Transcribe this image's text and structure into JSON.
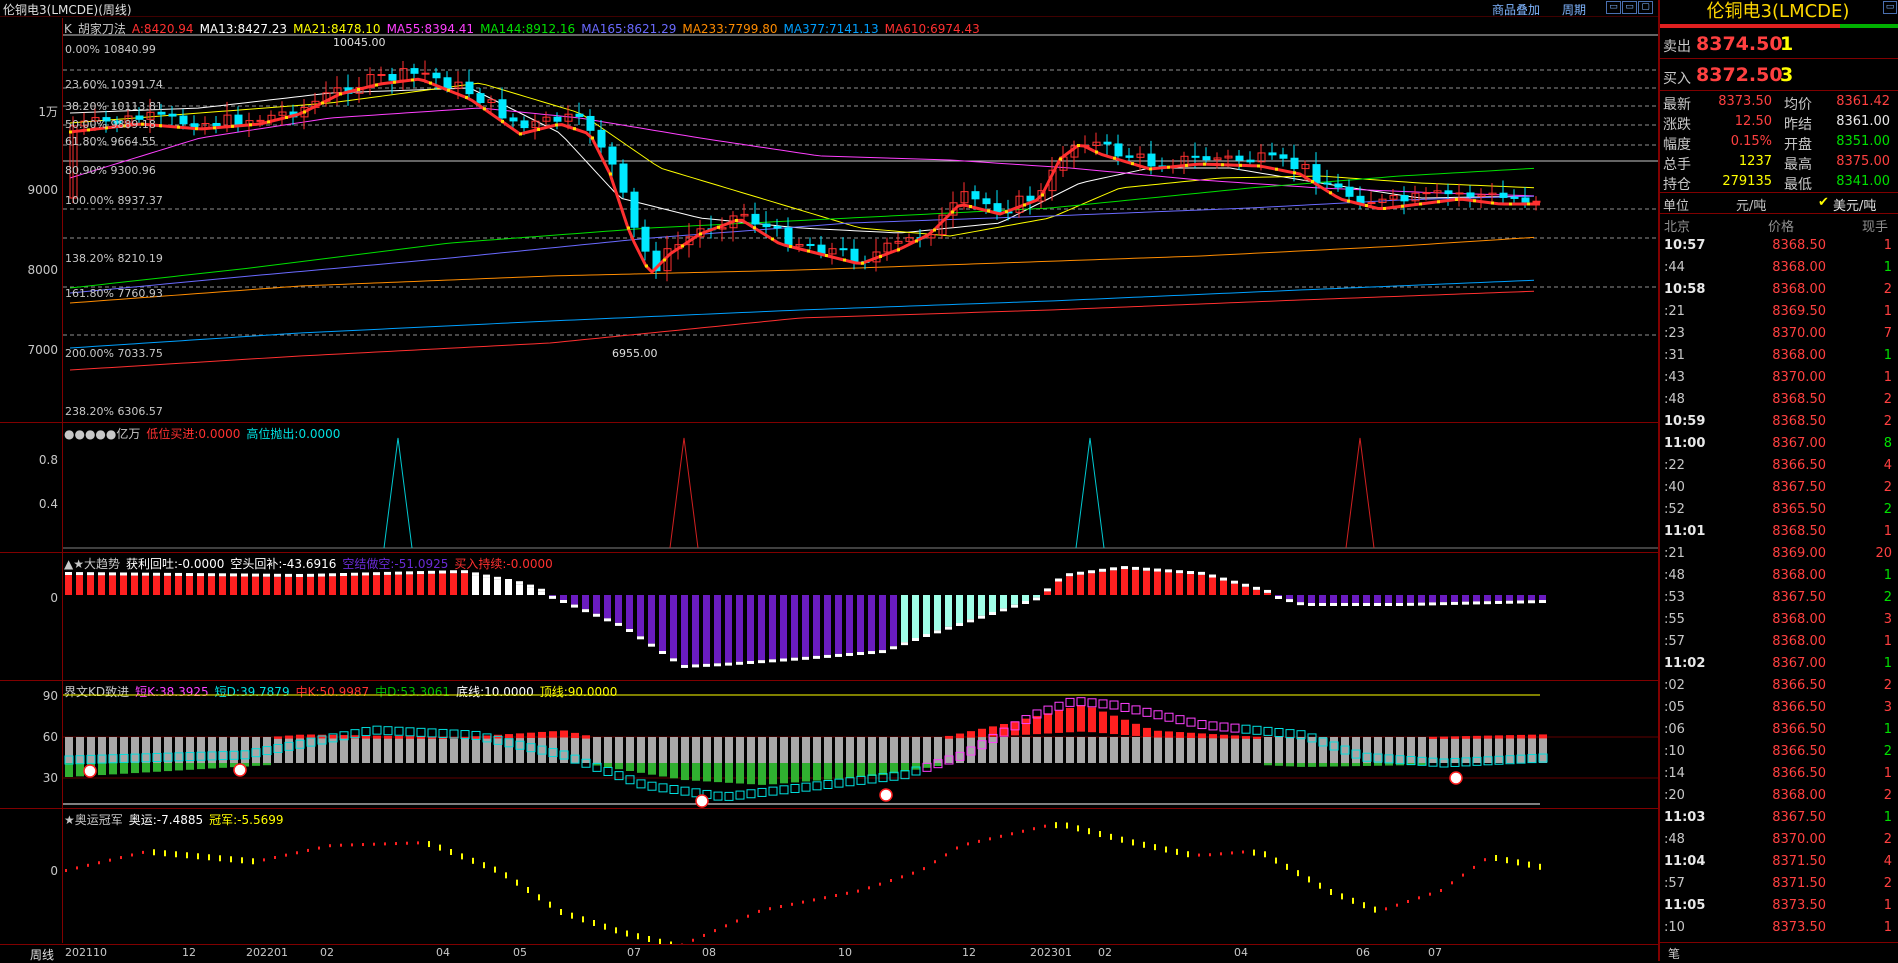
{
  "window": {
    "title": "伦铜电3(LMCDE)(周线)",
    "link_overlay": "商品叠加",
    "link_period": "周期"
  },
  "main_chart": {
    "legend": [
      {
        "text": "K",
        "color": "#c8c8c8"
      },
      {
        "text": "胡家刀法",
        "color": "#c8c8c8"
      },
      {
        "text": "A:8420.94",
        "color": "#ff3030"
      },
      {
        "text": "MA13:8427.23",
        "color": "#ffffff"
      },
      {
        "text": "MA21:8478.10",
        "color": "#ffff00"
      },
      {
        "text": "MA55:8394.41",
        "color": "#ff40ff"
      },
      {
        "text": "MA144:8912.16",
        "color": "#00e000"
      },
      {
        "text": "MA165:8621.29",
        "color": "#6a6aff"
      },
      {
        "text": "MA233:7799.80",
        "color": "#ff8c00"
      },
      {
        "text": "MA377:7141.13",
        "color": "#00a0ff"
      },
      {
        "text": "MA610:6974.43",
        "color": "#ff3030"
      }
    ],
    "y_labels": [
      "1万",
      "9000",
      "8000",
      "7000"
    ],
    "fib_levels": [
      "0.00% 10840.99",
      "23.60% 10391.74",
      "38.20% 10113.81",
      "50.00% 9889.18",
      "61.80% 9664.55",
      "80.90% 9300.96",
      "100.00% 8937.37",
      "138.20% 8210.19",
      "161.80% 7760.93",
      "200.00% 7033.75",
      "238.20% 6306.57"
    ],
    "high_mark": "10045.00",
    "low_mark": "6955.00"
  },
  "indicator1": {
    "legend": [
      {
        "text": "●●●●●亿万",
        "color": "#c8c8c8"
      },
      {
        "text": "低位买进:0.0000",
        "color": "#ff3030"
      },
      {
        "text": "高位抛出:0.0000",
        "color": "#00e0e0"
      }
    ],
    "y_labels": [
      "0.8",
      "0.4"
    ]
  },
  "indicator2": {
    "legend": [
      {
        "text": "▲★大趋势",
        "color": "#c8c8c8"
      },
      {
        "text": "获利回吐:-0.0000",
        "color": "#ffffff"
      },
      {
        "text": "空头回补:-43.6916",
        "color": "#ffffff"
      },
      {
        "text": "空结做空:-51.0925",
        "color": "#6a2bd6"
      },
      {
        "text": "买入持续:-0.0000",
        "color": "#ff3030"
      }
    ],
    "y_labels": [
      "0"
    ]
  },
  "indicator3": {
    "legend": [
      {
        "text": "界文KD致进",
        "color": "#c8c8c8"
      },
      {
        "text": "短K:38.3925",
        "color": "#ff40ff"
      },
      {
        "text": "短D:39.7879",
        "color": "#00e0e0"
      },
      {
        "text": "中K:50.9987",
        "color": "#ff3030"
      },
      {
        "text": "中D:53.3061",
        "color": "#00c000"
      },
      {
        "text": "底线:10.0000",
        "color": "#ffffff"
      },
      {
        "text": "顶线:90.0000",
        "color": "#ffff00"
      }
    ],
    "y_labels": [
      "90",
      "60",
      "30"
    ]
  },
  "indicator4": {
    "legend": [
      {
        "text": "★奥运冠军",
        "color": "#c8c8c8"
      },
      {
        "text": "奥运:-7.4885",
        "color": "#ffffff"
      },
      {
        "text": "冠军:-5.5699",
        "color": "#ffff00"
      }
    ],
    "y_labels": [
      "0"
    ]
  },
  "x_axis": {
    "period_label": "周线",
    "labels": [
      "202110",
      "12",
      "202201",
      "02",
      "04",
      "05",
      "07",
      "08",
      "10",
      "12",
      "202301",
      "02",
      "04",
      "06",
      "07"
    ]
  },
  "quote": {
    "title": "伦铜电3(LMCDE)",
    "ask_label": "卖出",
    "ask_price": "8374.50",
    "ask_vol": "1",
    "bid_label": "买入",
    "bid_price": "8372.50",
    "bid_vol": "3",
    "stats": [
      {
        "l1": "最新",
        "v1": "8373.50",
        "c1": "#ff4040",
        "l2": "均价",
        "v2": "8361.42",
        "c2": "#ff4040"
      },
      {
        "l1": "涨跌",
        "v1": "12.50",
        "c1": "#ff4040",
        "l2": "昨结",
        "v2": "8361.00",
        "c2": "#e8e8e8"
      },
      {
        "l1": "幅度",
        "v1": "0.15%",
        "c1": "#ff4040",
        "l2": "开盘",
        "v2": "8351.00",
        "c2": "#00e000"
      },
      {
        "l1": "总手",
        "v1": "1237",
        "c1": "#ffff00",
        "l2": "最高",
        "v2": "8375.00",
        "c2": "#ff4040"
      },
      {
        "l1": "持仓",
        "v1": "279135",
        "c1": "#ffff00",
        "l2": "最低",
        "v2": "8341.00",
        "c2": "#00e000"
      }
    ],
    "unit_label": "单位",
    "unit_value": "元/吨",
    "unit_option": "美元/吨",
    "tick_header": {
      "time": "北京",
      "price": "价格",
      "vol": "现手"
    },
    "ticks": [
      {
        "t": "10:57",
        "p": "8368.50",
        "v": "1",
        "b": true,
        "vc": "#ff4040"
      },
      {
        "t": ":44",
        "p": "8368.00",
        "v": "1",
        "b": false,
        "vc": "#00e000"
      },
      {
        "t": "10:58",
        "p": "8368.00",
        "v": "2",
        "b": true,
        "vc": "#ff4040"
      },
      {
        "t": ":21",
        "p": "8369.50",
        "v": "1",
        "b": false,
        "vc": "#ff4040"
      },
      {
        "t": ":23",
        "p": "8370.00",
        "v": "7",
        "b": false,
        "vc": "#ff4040"
      },
      {
        "t": ":31",
        "p": "8368.00",
        "v": "1",
        "b": false,
        "vc": "#00e000"
      },
      {
        "t": ":43",
        "p": "8370.00",
        "v": "1",
        "b": false,
        "vc": "#ff4040"
      },
      {
        "t": ":48",
        "p": "8368.50",
        "v": "2",
        "b": false,
        "vc": "#ff4040"
      },
      {
        "t": "10:59",
        "p": "8368.50",
        "v": "2",
        "b": true,
        "vc": "#ff4040"
      },
      {
        "t": "11:00",
        "p": "8367.00",
        "v": "8",
        "b": true,
        "vc": "#00e000"
      },
      {
        "t": ":22",
        "p": "8366.50",
        "v": "4",
        "b": false,
        "vc": "#ff4040"
      },
      {
        "t": ":40",
        "p": "8367.50",
        "v": "2",
        "b": false,
        "vc": "#ff4040"
      },
      {
        "t": ":52",
        "p": "8365.50",
        "v": "2",
        "b": false,
        "vc": "#00e000"
      },
      {
        "t": "11:01",
        "p": "8368.50",
        "v": "1",
        "b": true,
        "vc": "#ff4040"
      },
      {
        "t": ":21",
        "p": "8369.00",
        "v": "20",
        "b": false,
        "vc": "#ff4040"
      },
      {
        "t": ":48",
        "p": "8368.00",
        "v": "1",
        "b": false,
        "vc": "#00e000"
      },
      {
        "t": ":53",
        "p": "8367.50",
        "v": "2",
        "b": false,
        "vc": "#00e000"
      },
      {
        "t": ":55",
        "p": "8368.00",
        "v": "3",
        "b": false,
        "vc": "#ff4040"
      },
      {
        "t": ":57",
        "p": "8368.00",
        "v": "1",
        "b": false,
        "vc": "#ff4040"
      },
      {
        "t": "11:02",
        "p": "8367.00",
        "v": "1",
        "b": true,
        "vc": "#00e000"
      },
      {
        "t": ":02",
        "p": "8366.50",
        "v": "2",
        "b": false,
        "vc": "#ff4040"
      },
      {
        "t": ":05",
        "p": "8366.50",
        "v": "3",
        "b": false,
        "vc": "#ff4040"
      },
      {
        "t": ":06",
        "p": "8366.50",
        "v": "1",
        "b": false,
        "vc": "#00e000"
      },
      {
        "t": ":10",
        "p": "8366.50",
        "v": "2",
        "b": false,
        "vc": "#00e000"
      },
      {
        "t": ":14",
        "p": "8366.50",
        "v": "1",
        "b": false,
        "vc": "#ff4040"
      },
      {
        "t": ":20",
        "p": "8368.00",
        "v": "2",
        "b": false,
        "vc": "#ff4040"
      },
      {
        "t": "11:03",
        "p": "8367.50",
        "v": "1",
        "b": true,
        "vc": "#00e000"
      },
      {
        "t": ":48",
        "p": "8370.00",
        "v": "2",
        "b": false,
        "vc": "#ff4040"
      },
      {
        "t": "11:04",
        "p": "8371.50",
        "v": "4",
        "b": true,
        "vc": "#ff4040"
      },
      {
        "t": ":57",
        "p": "8371.50",
        "v": "2",
        "b": false,
        "vc": "#ff4040"
      },
      {
        "t": "11:05",
        "p": "8373.50",
        "v": "1",
        "b": true,
        "vc": "#ff4040"
      },
      {
        "t": ":10",
        "p": "8373.50",
        "v": "1",
        "b": false,
        "vc": "#ff4040"
      }
    ],
    "footer": "笔"
  }
}
